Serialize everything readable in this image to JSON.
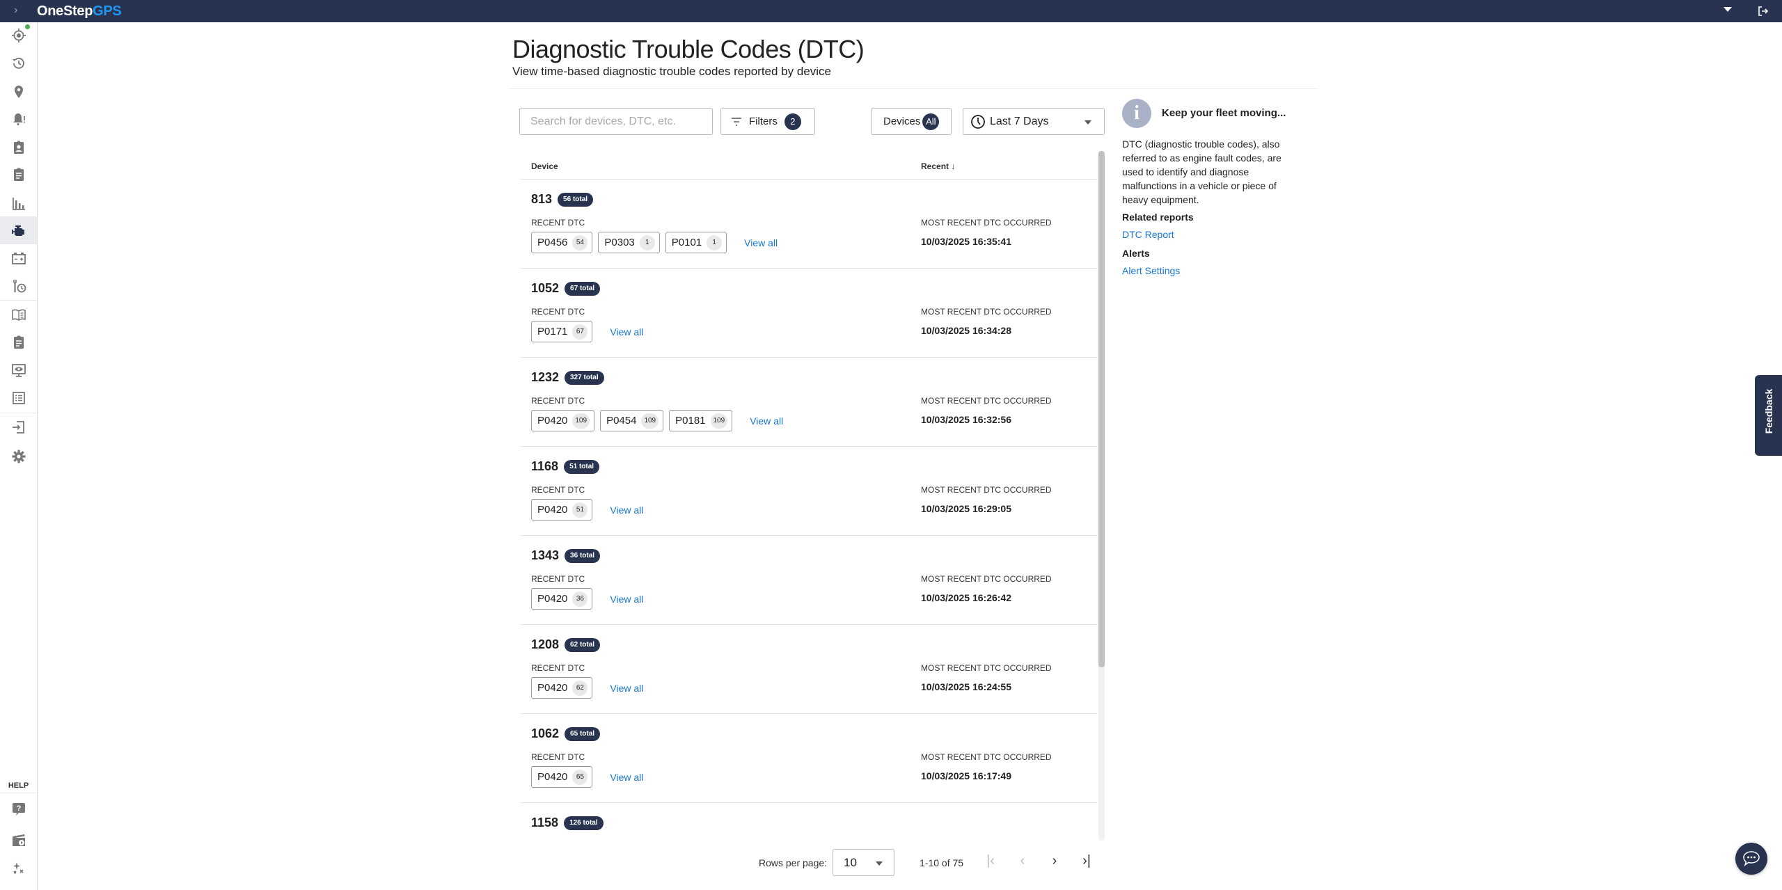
{
  "topbar": {
    "brand_one": "OneStep",
    "brand_two": "GPS",
    "expand_icon": "chevron-right-icon",
    "menu_icon": "caret-down-icon",
    "logout_icon": "logout-icon",
    "bg_color": "#283350"
  },
  "sidebar": {
    "items": [
      {
        "name": "live-tracking",
        "icon": "crosshair-icon",
        "status": "online"
      },
      {
        "name": "history",
        "icon": "history-icon"
      },
      {
        "name": "places",
        "icon": "map-pin-icon"
      },
      {
        "name": "alerts",
        "icon": "bell-alert-icon"
      },
      {
        "name": "drivers",
        "icon": "badge-icon"
      },
      {
        "name": "reports",
        "icon": "clipboard-icon"
      },
      {
        "name": "analytics",
        "icon": "bar-chart-icon"
      },
      {
        "name": "dtc",
        "icon": "engine-icon",
        "active": true
      },
      {
        "name": "battery",
        "icon": "battery-icon"
      },
      {
        "name": "maintenance",
        "icon": "wrench-clock-icon"
      },
      {
        "name": "logbook",
        "icon": "book-icon"
      },
      {
        "name": "inspections",
        "icon": "clipboard-icon"
      },
      {
        "name": "monitor",
        "icon": "monitor-eye-icon"
      },
      {
        "name": "list",
        "icon": "list-icon"
      },
      {
        "name": "import",
        "icon": "login-icon"
      },
      {
        "name": "settings",
        "icon": "gear-icon"
      }
    ],
    "help_label": "HELP",
    "help_items": [
      {
        "name": "support",
        "icon": "help-chat-icon"
      },
      {
        "name": "tutorials",
        "icon": "video-icon"
      },
      {
        "name": "whats-new",
        "icon": "sparkles-icon"
      }
    ]
  },
  "page": {
    "title": "Diagnostic Trouble Codes (DTC)",
    "subtitle": "View time-based diagnostic trouble codes reported by device"
  },
  "toolbar": {
    "search_placeholder": "Search for devices, DTC, etc.",
    "search_value": "",
    "filters_label": "Filters",
    "filters_count": "2",
    "devices_label": "Devices",
    "devices_value": "All",
    "date_range": "Last 7 Days"
  },
  "table": {
    "columns": {
      "device": "Device",
      "recent": "Recent",
      "sort": "descending"
    },
    "recent_dtc_label": "RECENT DTC",
    "occurred_label": "MOST RECENT DTC OCCURRED",
    "view_all": "View all",
    "rows": [
      {
        "device": "813",
        "total": "56 total",
        "dtcs": [
          {
            "code": "P0456",
            "count": "54"
          },
          {
            "code": "P0303",
            "count": "1"
          },
          {
            "code": "P0101",
            "count": "1"
          }
        ],
        "date": "10/03/2025 16:35:41"
      },
      {
        "device": "1052",
        "total": "67 total",
        "dtcs": [
          {
            "code": "P0171",
            "count": "67"
          }
        ],
        "date": "10/03/2025 16:34:28"
      },
      {
        "device": "1232",
        "total": "327 total",
        "dtcs": [
          {
            "code": "P0420",
            "count": "109"
          },
          {
            "code": "P0454",
            "count": "109"
          },
          {
            "code": "P0181",
            "count": "109"
          }
        ],
        "date": "10/03/2025 16:32:56"
      },
      {
        "device": "1168",
        "total": "51 total",
        "dtcs": [
          {
            "code": "P0420",
            "count": "51"
          }
        ],
        "date": "10/03/2025 16:29:05"
      },
      {
        "device": "1343",
        "total": "36 total",
        "dtcs": [
          {
            "code": "P0420",
            "count": "36"
          }
        ],
        "date": "10/03/2025 16:26:42"
      },
      {
        "device": "1208",
        "total": "62 total",
        "dtcs": [
          {
            "code": "P0420",
            "count": "62"
          }
        ],
        "date": "10/03/2025 16:24:55"
      },
      {
        "device": "1062",
        "total": "65 total",
        "dtcs": [
          {
            "code": "P0420",
            "count": "65"
          }
        ],
        "date": "10/03/2025 16:17:49"
      },
      {
        "device": "1158",
        "total": "126 total"
      }
    ]
  },
  "pagination": {
    "rows_per_page_label": "Rows per page:",
    "rows_per_page": "10",
    "range": "1-10 of 75"
  },
  "panel": {
    "title": "Keep your fleet moving...",
    "description": "DTC (diagnostic trouble codes), also referred to as engine fault codes, are used to identify and diagnose malfunctions in a vehicle or piece of heavy equipment.",
    "related_heading": "Related reports",
    "related_link": "DTC Report",
    "alerts_heading": "Alerts",
    "alerts_link": "Alert Settings"
  },
  "feedback_label": "Feedback",
  "colors": {
    "navy": "#283350",
    "link": "#1976d2",
    "online": "#4caf50"
  }
}
